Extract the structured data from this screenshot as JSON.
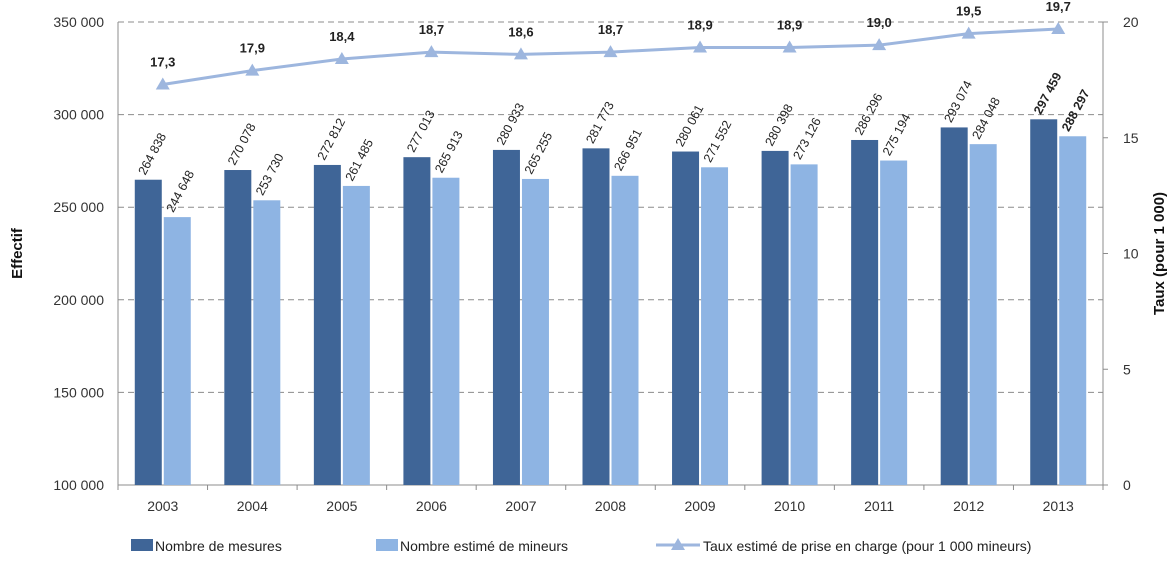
{
  "chart_data": {
    "type": "bar",
    "categories": [
      "2003",
      "2004",
      "2005",
      "2006",
      "2007",
      "2008",
      "2009",
      "2010",
      "2011",
      "2012",
      "2013"
    ],
    "series": [
      {
        "name": "Nombre de mesures",
        "axis": "left",
        "color": "#3f6597",
        "values": [
          264838,
          270078,
          272812,
          277013,
          280933,
          281773,
          280061,
          280398,
          286296,
          293074,
          297459
        ],
        "labels": [
          "264 838",
          "270 078",
          "272 812",
          "277 013",
          "280 933",
          "281 773",
          "280 061",
          "280 398",
          "286 296",
          "293 074",
          "297 459"
        ]
      },
      {
        "name": "Nombre estimé de mineurs",
        "axis": "left",
        "color": "#8eb4e3",
        "values": [
          244648,
          253730,
          261485,
          265913,
          265255,
          266951,
          271552,
          273126,
          275194,
          284048,
          288297
        ],
        "labels": [
          "244 648",
          "253 730",
          "261 485",
          "265 913",
          "265 255",
          "266 951",
          "271 552",
          "273 126",
          "275 194",
          "284 048",
          "288 297"
        ]
      },
      {
        "name": "Taux estimé de prise en charge (pour 1 000 mineurs)",
        "type": "line",
        "axis": "right",
        "color": "#9db6de",
        "values": [
          17.3,
          17.9,
          18.4,
          18.7,
          18.6,
          18.7,
          18.9,
          18.9,
          19.0,
          19.5,
          19.7
        ],
        "labels": [
          "17,3",
          "17,9",
          "18,4",
          "18,7",
          "18,6",
          "18,7",
          "18,9",
          "18,9",
          "19,0",
          "19,5",
          "19,7"
        ]
      }
    ],
    "ylabel": "Effectif",
    "ylabel_right": "Taux (pour 1 000)",
    "ylim": [
      100000,
      350000
    ],
    "yticks": [
      100000,
      150000,
      200000,
      250000,
      300000,
      350000
    ],
    "ytick_labels": [
      "100 000",
      "150 000",
      "200 000",
      "250 000",
      "300 000",
      "350 000"
    ],
    "ylim_right": [
      0,
      20
    ],
    "yticks_right": [
      0,
      5,
      10,
      15,
      20
    ],
    "ytick_labels_right": [
      "0",
      "5",
      "10",
      "15",
      "20"
    ],
    "grid": "horizontal dashed",
    "legend": "bottom"
  }
}
